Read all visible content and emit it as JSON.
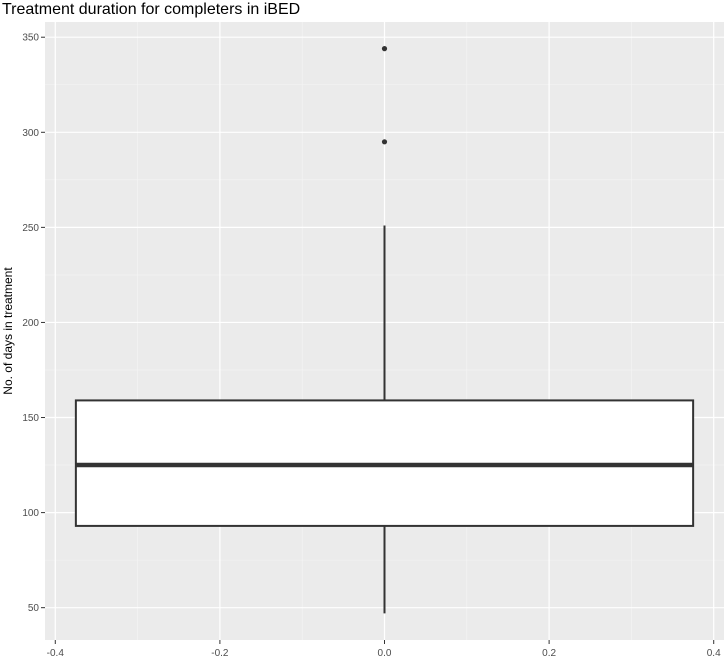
{
  "chart_data": {
    "type": "boxplot",
    "title": "Treatment duration for completers in iBED",
    "xlabel": "",
    "ylabel": "No. of days in treatment",
    "xlim": [
      -0.4125,
      0.4125
    ],
    "ylim": [
      33,
      358
    ],
    "x_ticks": [
      -0.4,
      -0.2,
      0.0,
      0.2,
      0.4
    ],
    "x_tick_labels": [
      "-0.4",
      "-0.2",
      "0.0",
      "0.2",
      "0.4"
    ],
    "y_ticks": [
      50,
      100,
      150,
      200,
      250,
      300,
      350
    ],
    "y_tick_labels": [
      "50",
      "100",
      "150",
      "200",
      "250",
      "300",
      "350"
    ],
    "grid": true,
    "box": {
      "x_center": 0.0,
      "x_left": -0.375,
      "x_right": 0.375,
      "whisker_low": 47,
      "q1": 93,
      "median": 125,
      "q3": 159,
      "whisker_high": 251,
      "outliers": [
        295,
        344
      ]
    },
    "colors": {
      "panel_background": "#ebebeb",
      "grid_major": "#ffffff",
      "grid_minor": "#f5f5f5",
      "box_fill": "#ffffff",
      "box_line": "#333333",
      "tick_text": "#4d4d4d",
      "text": "#000000"
    }
  }
}
